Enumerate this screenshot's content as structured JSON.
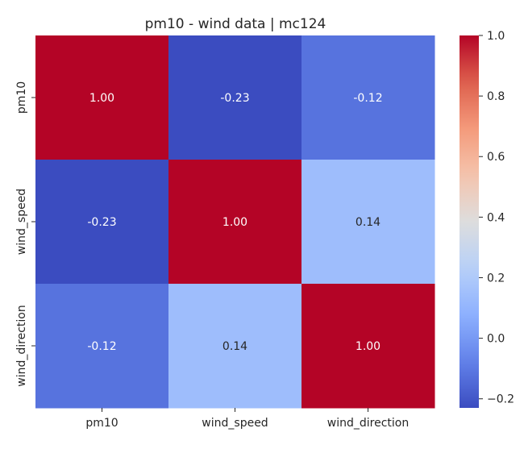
{
  "chart_data": {
    "type": "heatmap",
    "title": "pm10 - wind data | mc124",
    "x_labels": [
      "pm10",
      "wind_speed",
      "wind_direction"
    ],
    "y_labels": [
      "pm10",
      "wind_speed",
      "wind_direction"
    ],
    "values": [
      [
        1.0,
        -0.23,
        -0.12
      ],
      [
        -0.23,
        1.0,
        0.14
      ],
      [
        -0.12,
        0.14,
        1.0
      ]
    ],
    "cell_labels": [
      [
        "1.00",
        "-0.23",
        "-0.12"
      ],
      [
        "-0.23",
        "1.00",
        "0.14"
      ],
      [
        "-0.12",
        "0.14",
        "1.00"
      ]
    ],
    "colormap": "coolwarm",
    "color_range": [
      -0.23,
      1.0
    ],
    "colorbar": {
      "ticks": [
        -0.2,
        0.0,
        0.2,
        0.4,
        0.6,
        0.8,
        1.0
      ],
      "tick_labels": [
        "−0.2",
        "0.0",
        "0.2",
        "0.4",
        "0.6",
        "0.8",
        "1.0"
      ]
    }
  }
}
